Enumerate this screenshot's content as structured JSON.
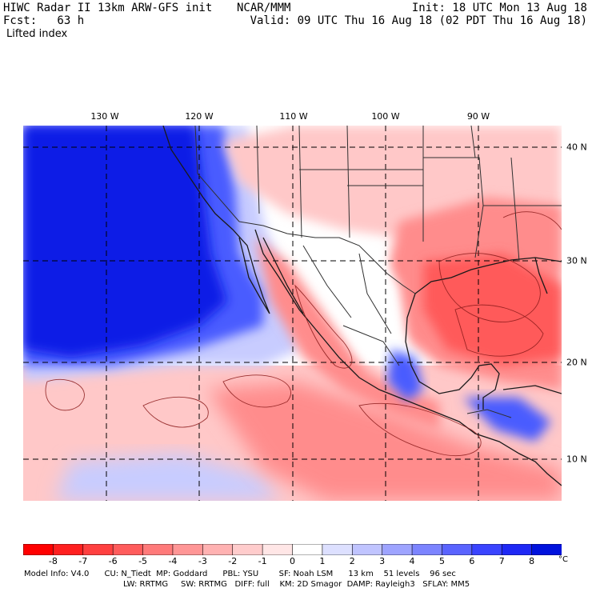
{
  "header": {
    "title": "HIWC Radar II 13km ARW-GFS init",
    "organization": "NCAR/MMM",
    "forecast": "Fcst:   63 h",
    "field": "Lifted index",
    "init": "Init: 18 UTC Mon 13 Aug 18",
    "valid": "Valid: 09 UTC Thu 16 Aug 18 (02 PDT Thu 16 Aug 18)"
  },
  "map": {
    "lon_labels": [
      "130 W",
      "120 W",
      "110 W",
      "100 W",
      "90 W"
    ],
    "lon_values": [
      -130,
      -120,
      -110,
      -100,
      -90
    ],
    "lat_labels": [
      "40 N",
      "30 N",
      "20 N",
      "10 N"
    ],
    "lat_values": [
      40,
      30,
      20,
      10
    ]
  },
  "colorbar": {
    "labels": [
      "-8",
      "-7",
      "-6",
      "-5",
      "-4",
      "-3",
      "-2",
      "-1",
      "0",
      "1",
      "2",
      "3",
      "4",
      "5",
      "6",
      "7",
      "8"
    ],
    "unit": "°C",
    "colors": [
      "#ff0000",
      "#ff2020",
      "#ff4040",
      "#ff5c5c",
      "#ff7a7a",
      "#ff9696",
      "#ffb2b2",
      "#ffcccc",
      "#ffe6e6",
      "#ffffff",
      "#dde0ff",
      "#c0c4ff",
      "#9ea4ff",
      "#7c84ff",
      "#5a64ff",
      "#3a44ff",
      "#1e28f5",
      "#0012dd"
    ]
  },
  "model_info": {
    "line1": "Model Info: V4.0      CU: N_Tiedt  MP: Goddard      PBL: YSU        SF: Noah LSM      13 km    51 levels    96 sec",
    "line2": "LW: RRTMG     SW: RRTMG   DIFF: full    KM: 2D Smagor  DAMP: Rayleigh3   SFLAY: MM5"
  },
  "palette": {
    "deep_blue": "#0a1ee6",
    "med_blue": "#4a5cff",
    "light_blue": "#c8ccff",
    "white": "#ffffff",
    "light_red": "#ffc8c8",
    "med_red": "#ff8c8c",
    "strong_red": "#ff5a5a",
    "coast": "#1a1a1a",
    "border": "#303030"
  }
}
